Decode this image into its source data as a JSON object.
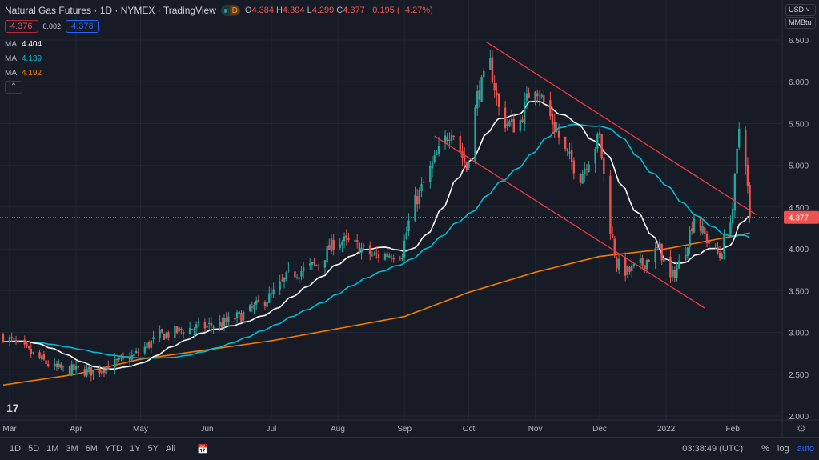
{
  "header": {
    "title": "Natural Gas Futures · 1D · NYMEX · TradingView",
    "interval_badge": "D",
    "ohlc": {
      "o_label": "O",
      "o": "4.384",
      "h_label": "H",
      "h": "4.394",
      "l_label": "L",
      "l": "4.299",
      "c_label": "C",
      "c": "4.377",
      "change": "−0.195 (−4.27%)"
    },
    "bid": "4.376",
    "spread": "0.002",
    "ask": "4.378"
  },
  "indicators": [
    {
      "label": "MA",
      "value": "4.404",
      "color": "#ffffff"
    },
    {
      "label": "MA",
      "value": "4.139",
      "color": "#00bcd4"
    },
    {
      "label": "MA",
      "value": "4.192",
      "color": "#f57c00"
    }
  ],
  "price_axis": {
    "currency": "USD",
    "unit": "MMBtu",
    "last_price_label": "4.377"
  },
  "toolbar": {
    "ranges": [
      "1D",
      "5D",
      "1M",
      "3M",
      "6M",
      "YTD",
      "1Y",
      "5Y",
      "All"
    ],
    "time": "03:38:49 (UTC)",
    "percent": "%",
    "log": "log",
    "auto": "auto"
  },
  "chart_data": {
    "type": "candlestick",
    "title": "Natural Gas Futures · 1D · NYMEX",
    "ylim": [
      2.0,
      6.5
    ],
    "yticks": [
      "2.000",
      "2.500",
      "3.000",
      "3.500",
      "4.000",
      "4.500",
      "5.000",
      "5.500",
      "6.000",
      "6.500"
    ],
    "xticks": [
      {
        "label": "Mar",
        "date": "2021-03-01"
      },
      {
        "label": "Apr",
        "date": "2021-04-01"
      },
      {
        "label": "May",
        "date": "2021-05-01"
      },
      {
        "label": "Jun",
        "date": "2021-06-01"
      },
      {
        "label": "Jul",
        "date": "2021-07-01"
      },
      {
        "label": "Aug",
        "date": "2021-08-01"
      },
      {
        "label": "Sep",
        "date": "2021-09-01"
      },
      {
        "label": "Oct",
        "date": "2021-10-01"
      },
      {
        "label": "Nov",
        "date": "2021-11-01"
      },
      {
        "label": "Dec",
        "date": "2021-12-01"
      },
      {
        "label": "2022",
        "date": "2022-01-01"
      },
      {
        "label": "Feb",
        "date": "2022-02-01"
      }
    ],
    "close_path": [
      [
        "2021-02-26",
        2.96
      ],
      [
        "2021-03-22",
        2.57
      ],
      [
        "2021-04-09",
        2.53
      ],
      [
        "2021-04-28",
        2.72
      ],
      [
        "2021-05-10",
        2.96
      ],
      [
        "2021-05-25",
        3.05
      ],
      [
        "2021-06-08",
        3.1
      ],
      [
        "2021-06-20",
        3.24
      ],
      [
        "2021-07-01",
        3.44
      ],
      [
        "2021-07-09",
        3.68
      ],
      [
        "2021-07-23",
        3.82
      ],
      [
        "2021-07-31",
        4.11
      ],
      [
        "2021-08-08",
        4.06
      ],
      [
        "2021-08-18",
        3.91
      ],
      [
        "2021-08-31",
        3.96
      ],
      [
        "2021-09-04",
        4.44
      ],
      [
        "2021-09-10",
        4.78
      ],
      [
        "2021-09-17",
        5.16
      ],
      [
        "2021-09-23",
        5.45
      ],
      [
        "2021-09-30",
        4.97
      ],
      [
        "2021-10-05",
        5.83
      ],
      [
        "2021-10-11",
        6.21
      ],
      [
        "2021-10-16",
        5.54
      ],
      [
        "2021-10-24",
        5.45
      ],
      [
        "2021-10-31",
        6.02
      ],
      [
        "2021-11-07",
        5.64
      ],
      [
        "2021-11-15",
        5.16
      ],
      [
        "2021-11-22",
        4.87
      ],
      [
        "2021-12-01",
        5.35
      ],
      [
        "2021-12-05",
        4.39
      ],
      [
        "2021-12-09",
        3.82
      ],
      [
        "2021-12-14",
        3.72
      ],
      [
        "2021-12-21",
        3.82
      ],
      [
        "2021-12-29",
        4.01
      ],
      [
        "2022-01-03",
        3.63
      ],
      [
        "2022-01-09",
        3.91
      ],
      [
        "2022-01-14",
        4.39
      ],
      [
        "2022-01-20",
        4.11
      ],
      [
        "2022-01-26",
        3.91
      ],
      [
        "2022-02-01",
        4.49
      ],
      [
        "2022-02-04",
        5.45
      ],
      [
        "2022-02-07",
        5.07
      ],
      [
        "2022-02-09",
        4.377
      ]
    ],
    "ma200_path": [
      [
        "2021-02-26",
        2.37
      ],
      [
        "2021-04-01",
        2.5
      ],
      [
        "2021-05-01",
        2.68
      ],
      [
        "2021-07-01",
        2.9
      ],
      [
        "2021-09-01",
        3.19
      ],
      [
        "2021-10-01",
        3.48
      ],
      [
        "2021-11-01",
        3.72
      ],
      [
        "2021-12-01",
        3.91
      ],
      [
        "2022-01-01",
        4.0
      ],
      [
        "2022-02-09",
        4.19
      ]
    ],
    "ma_periods": [
      20,
      50,
      200
    ],
    "trendlines": [
      {
        "from": [
          "2021-10-09",
          6.48
        ],
        "to": [
          "2022-02-12",
          4.41
        ]
      },
      {
        "from": [
          "2021-09-15",
          5.35
        ],
        "to": [
          "2022-01-19",
          3.29
        ]
      }
    ],
    "last_price": 4.377,
    "colors": {
      "up": "#26a69a",
      "down": "#ef5350",
      "ma20": "#ffffff",
      "ma50": "#00bcd4",
      "ma200": "#f57c00",
      "trend": "#f23645"
    }
  }
}
